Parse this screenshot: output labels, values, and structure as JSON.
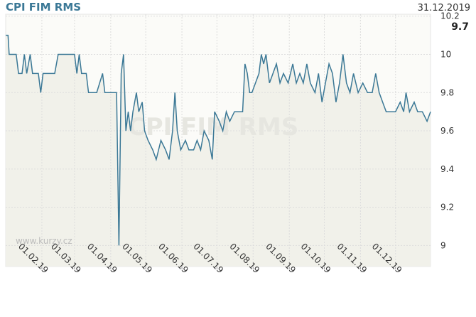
{
  "chart_data": {
    "type": "line",
    "title": "CPI FIM RMS",
    "date": "31.12.2019",
    "watermark": "www.kurzy.cz",
    "last_value": 9.7,
    "color": "#3b7896",
    "grid": true,
    "xlim": [
      "01.01.19",
      "31.12.19"
    ],
    "ylim": [
      8.89,
      10.21
    ],
    "yticks": [
      9,
      9.2,
      9.4,
      9.6,
      9.8,
      10,
      10.2
    ],
    "xticks": [
      "01.02.19",
      "01.03.19",
      "01.04.19",
      "01.05.19",
      "01.06.19",
      "01.07.19",
      "01.08.19",
      "01.09.19",
      "01.10.19",
      "01.11.19",
      "01.12.19"
    ],
    "x": [
      "01.01.19",
      "03.01.19",
      "04.01.19",
      "10.01.19",
      "12.01.19",
      "15.01.19",
      "17.01.19",
      "19.01.19",
      "22.01.19",
      "24.01.19",
      "29.01.19",
      "31.01.19",
      "02.02.19",
      "05.02.19",
      "12.02.19",
      "15.02.19",
      "25.02.19",
      "01.03.19",
      "03.03.19",
      "05.03.19",
      "07.03.19",
      "11.03.19",
      "13.03.19",
      "20.03.19",
      "25.03.19",
      "27.03.19",
      "06.04.19",
      "08.04.19",
      "10.04.19",
      "12.04.19",
      "14.04.19",
      "16.04.19",
      "18.04.19",
      "20.04.19",
      "23.04.19",
      "25.04.19",
      "28.04.19",
      "30.04.19",
      "03.05.19",
      "07.05.19",
      "10.05.19",
      "14.05.19",
      "18.05.19",
      "21.05.19",
      "24.05.19",
      "26.05.19",
      "28.05.19",
      "31.05.19",
      "04.06.19",
      "07.06.19",
      "11.06.19",
      "14.06.19",
      "17.06.19",
      "20.06.19",
      "24.06.19",
      "27.06.19",
      "29.06.19",
      "03.07.19",
      "06.07.19",
      "09.07.19",
      "12.07.19",
      "16.07.19",
      "20.07.19",
      "23.07.19",
      "25.07.19",
      "27.07.19",
      "29.07.19",
      "31.07.19",
      "03.08.19",
      "06.08.19",
      "08.08.19",
      "10.08.19",
      "12.08.19",
      "15.08.19",
      "18.08.19",
      "21.08.19",
      "24.08.19",
      "27.08.19",
      "31.08.19",
      "04.09.19",
      "07.09.19",
      "10.09.19",
      "13.09.19",
      "16.09.19",
      "19.09.19",
      "23.09.19",
      "26.09.19",
      "29.09.19",
      "02.10.19",
      "05.10.19",
      "08.10.19",
      "11.10.19",
      "14.10.19",
      "17.10.19",
      "20.10.19",
      "23.10.19",
      "26.10.19",
      "30.10.19",
      "03.11.19",
      "07.11.19",
      "11.11.19",
      "14.11.19",
      "17.11.19",
      "20.11.19",
      "23.11.19",
      "27.11.19",
      "01.12.19",
      "05.12.19",
      "08.12.19",
      "10.12.19",
      "13.12.19",
      "17.12.19",
      "20.12.19",
      "24.12.19",
      "28.12.19",
      "31.12.19"
    ],
    "values": [
      10.1,
      10.1,
      10.0,
      10.0,
      9.9,
      9.9,
      10.0,
      9.9,
      10.0,
      9.9,
      9.9,
      9.8,
      9.9,
      9.9,
      9.9,
      10.0,
      10.0,
      10.0,
      9.9,
      10.0,
      9.9,
      9.9,
      9.8,
      9.8,
      9.9,
      9.8,
      9.8,
      9.0,
      9.9,
      10.0,
      9.6,
      9.7,
      9.6,
      9.7,
      9.8,
      9.7,
      9.75,
      9.6,
      9.55,
      9.5,
      9.45,
      9.55,
      9.5,
      9.45,
      9.6,
      9.8,
      9.6,
      9.5,
      9.55,
      9.5,
      9.5,
      9.55,
      9.5,
      9.6,
      9.55,
      9.45,
      9.7,
      9.65,
      9.6,
      9.7,
      9.65,
      9.7,
      9.7,
      9.7,
      9.95,
      9.9,
      9.8,
      9.8,
      9.85,
      9.9,
      10.0,
      9.95,
      10.0,
      9.85,
      9.9,
      9.95,
      9.85,
      9.9,
      9.85,
      9.95,
      9.85,
      9.9,
      9.85,
      9.95,
      9.85,
      9.8,
      9.9,
      9.75,
      9.85,
      9.95,
      9.9,
      9.75,
      9.85,
      10.0,
      9.85,
      9.8,
      9.9,
      9.8,
      9.85,
      9.8,
      9.8,
      9.9,
      9.8,
      9.75,
      9.7,
      9.7,
      9.7,
      9.75,
      9.7,
      9.8,
      9.7,
      9.75,
      9.7,
      9.7,
      9.65,
      9.7
    ]
  }
}
